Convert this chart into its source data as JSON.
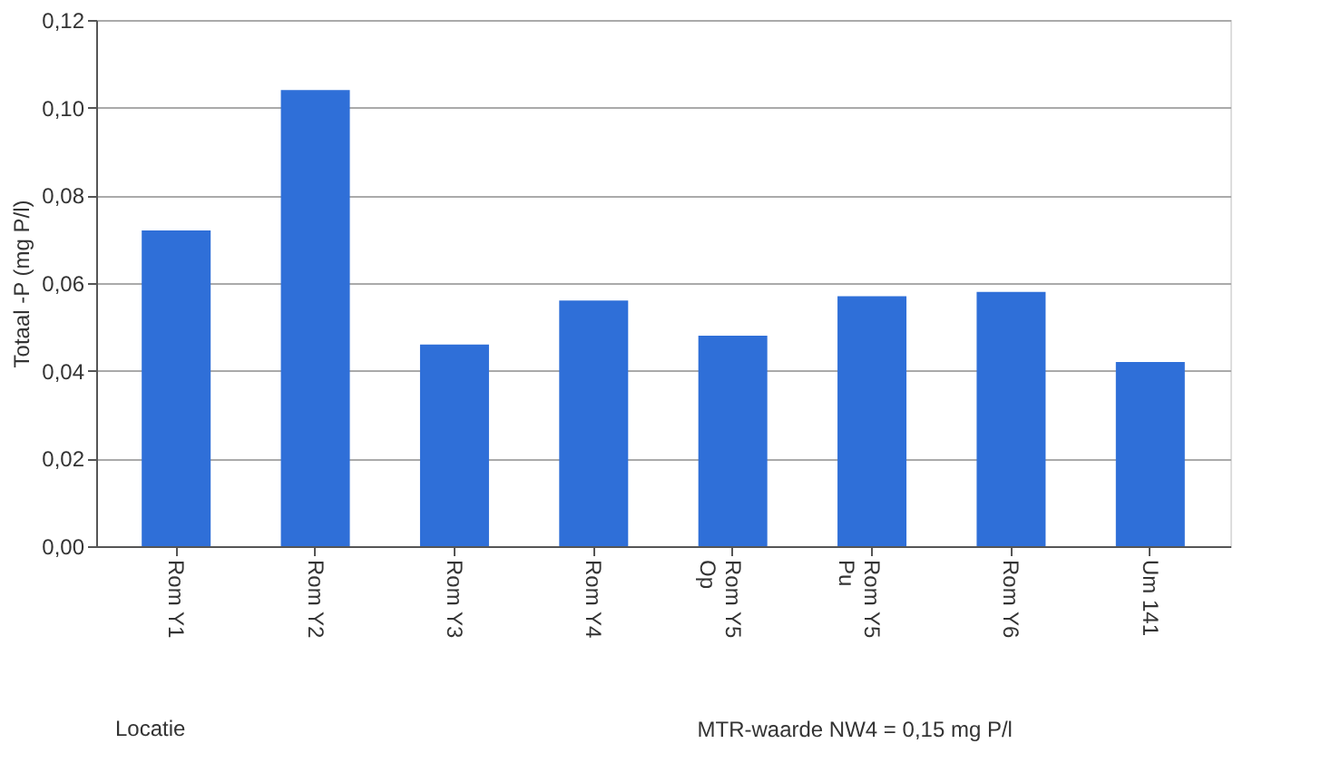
{
  "chart_data": {
    "type": "bar",
    "xlabel": "Locatie",
    "ylabel": "Totaal -P (mg P/l)",
    "categories": [
      "Rom Y1",
      "Rom Y2",
      "Rom Y3",
      "Rom Y4",
      "Rom Y5\nOp",
      "Rom Y5\nPu",
      "Rom Y6",
      "Um 141"
    ],
    "values": [
      0.072,
      0.104,
      0.046,
      0.056,
      0.048,
      0.057,
      0.058,
      0.042
    ],
    "color": "#2f6fd8",
    "ylim": [
      0,
      0.12
    ],
    "yticks": [
      {
        "value": 0,
        "label": "0,00"
      },
      {
        "value": 0.02,
        "label": "0,02"
      },
      {
        "value": 0.04,
        "label": "0,04"
      },
      {
        "value": 0.06,
        "label": "0,06"
      },
      {
        "value": 0.08,
        "label": "0,08"
      },
      {
        "value": 0.1,
        "label": "0,10"
      },
      {
        "value": 0.12,
        "label": "0,12"
      }
    ],
    "grid": "y",
    "annotations": [
      "MTR-waarde NW4 = 0,15 mg P/l"
    ]
  }
}
